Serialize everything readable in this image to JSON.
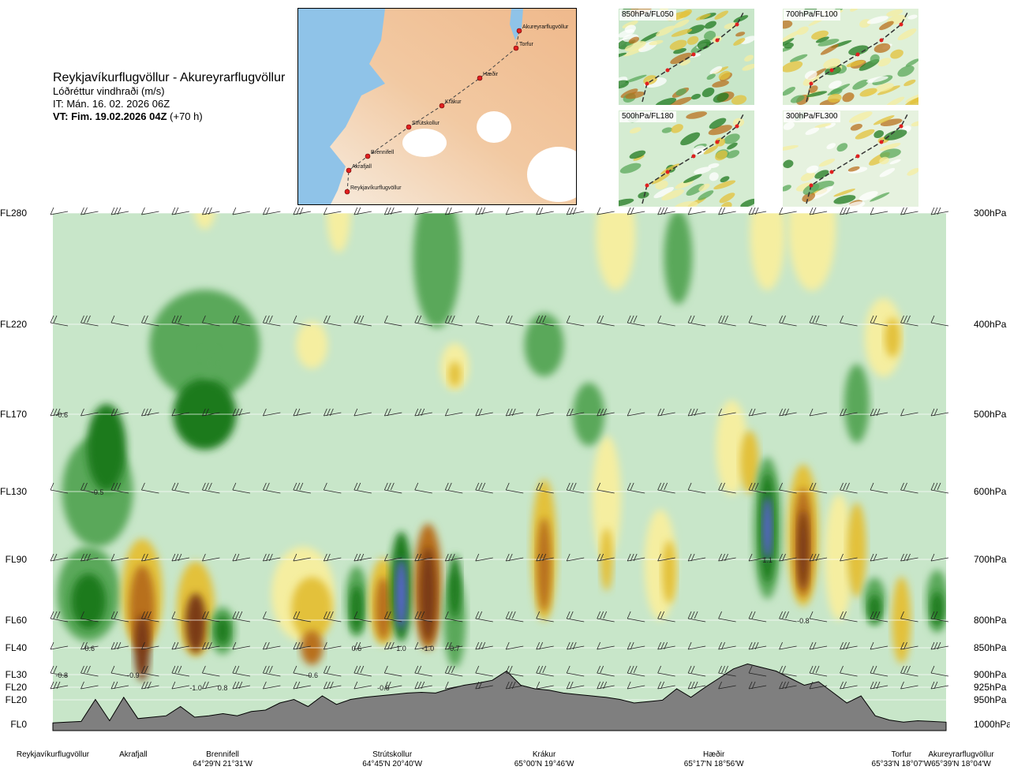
{
  "header": {
    "title": "Reykjavíkurflugvöllur - Akureyrarflugvöllur",
    "parameter": "Lóðréttur vindhraði (m/s)",
    "init_time": "IT: Mán. 16. 02. 2026 06Z",
    "valid_label": "VT: Fim. 19.02.2026 04Z",
    "valid_offset": "(+70 h)"
  },
  "map": {
    "points": [
      "Akureyrarflugvöllur",
      "Torfur",
      "Hæðir",
      "Krákur",
      "Strútskollur",
      "Brennifell",
      "Akrafjall",
      "Reykjavíkurflugvöllur"
    ]
  },
  "insets": [
    {
      "label": "850hPa/FL050"
    },
    {
      "label": "700hPa/FL100"
    },
    {
      "label": "500hPa/FL180"
    },
    {
      "label": "300hPa/FL300"
    }
  ],
  "colors": {
    "strong_down": "#1f7a1f",
    "mod_down": "#5aa85a",
    "weak_down": "#c8e6c9",
    "weak_up": "#f5eea0",
    "mod_up": "#e3c13a",
    "strong_up": "#b8701e",
    "very_strong_up": "#7a3a12",
    "very_strong_down": "#5a64d2",
    "terrain": "#7f7f7f"
  },
  "chart_data": {
    "type": "heatmap",
    "title": "Reykjavíkurflugvöllur - Akureyrarflugvöllur",
    "quantity": "Lóðréttur vindhraði (m/s)",
    "y_levels_left": [
      "FL280",
      "FL220",
      "FL170",
      "FL130",
      "FL90",
      "FL60",
      "FL40",
      "FL30",
      "FL20",
      "FL20",
      "FL0"
    ],
    "y_levels_right": [
      "300hPa",
      "400hPa",
      "500hPa",
      "600hPa",
      "700hPa",
      "800hPa",
      "850hPa",
      "900hPa",
      "925hPa",
      "950hPa",
      "1000hPa"
    ],
    "y_pressure_hpa": [
      300,
      400,
      500,
      600,
      700,
      800,
      850,
      900,
      925,
      950,
      1000
    ],
    "x_points": [
      {
        "name": "Reykjavíkurflugvöllur",
        "coord": ""
      },
      {
        "name": "Akrafjall",
        "coord": ""
      },
      {
        "name": "Brennifell",
        "coord": "64°29'N 21°31'W"
      },
      {
        "name": "Strútskollur",
        "coord": "64°45'N 20°40'W"
      },
      {
        "name": "Krákur",
        "coord": "65°00'N 19°46'W"
      },
      {
        "name": "Hæðir",
        "coord": "65°17'N 18°56'W"
      },
      {
        "name": "Torfur",
        "coord": "65°33'N 18°07'W"
      },
      {
        "name": "Akureyrarflugvöllur",
        "coord": "65°39'N 18°04'W"
      }
    ],
    "value_labels": [
      {
        "text": "-0.6",
        "x": 0.01,
        "p": 500
      },
      {
        "text": "-0.5",
        "x": 0.05,
        "p": 600
      },
      {
        "text": "-0.6",
        "x": 0.04,
        "p": 850
      },
      {
        "text": "-0.8",
        "x": 0.01,
        "p": 900
      },
      {
        "text": "-0.9",
        "x": 0.09,
        "p": 900
      },
      {
        "text": "-1.0",
        "x": 0.16,
        "p": 925
      },
      {
        "text": "0.8",
        "x": 0.19,
        "p": 925
      },
      {
        "text": "-0.6",
        "x": 0.29,
        "p": 900
      },
      {
        "text": "0.6",
        "x": 0.34,
        "p": 850
      },
      {
        "text": "-0.6",
        "x": 0.37,
        "p": 925
      },
      {
        "text": "1.0",
        "x": 0.39,
        "p": 850
      },
      {
        "text": "-1.0",
        "x": 0.42,
        "p": 850
      },
      {
        "text": "0.7",
        "x": 0.45,
        "p": 850
      },
      {
        "text": "1.1",
        "x": 0.8,
        "p": 700
      },
      {
        "text": "-0.8",
        "x": 0.84,
        "p": 800
      }
    ],
    "terrain_m_relative": [
      0.02,
      0.03,
      0.04,
      0.35,
      0.05,
      0.38,
      0.08,
      0.1,
      0.12,
      0.25,
      0.1,
      0.12,
      0.15,
      0.12,
      0.18,
      0.2,
      0.3,
      0.35,
      0.25,
      0.4,
      0.28,
      0.35,
      0.38,
      0.4,
      0.42,
      0.44,
      0.45,
      0.44,
      0.5,
      0.55,
      0.58,
      0.62,
      0.75,
      0.55,
      0.5,
      0.48,
      0.44,
      0.42,
      0.4,
      0.38,
      0.35,
      0.3,
      0.32,
      0.34,
      0.5,
      0.38,
      0.52,
      0.65,
      0.78,
      0.85,
      0.8,
      0.75,
      0.65,
      0.55,
      0.6,
      0.45,
      0.3,
      0.4,
      0.12,
      0.06,
      0.03,
      0.05,
      0.04,
      0.03
    ]
  }
}
